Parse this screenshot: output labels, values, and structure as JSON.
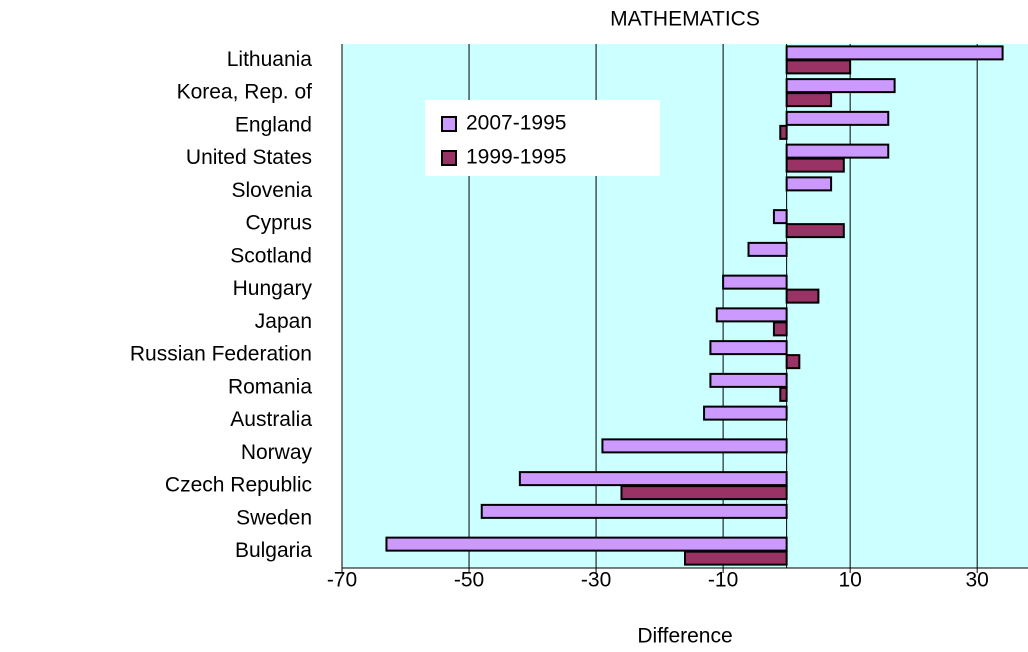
{
  "chart_data": {
    "type": "bar",
    "orientation": "horizontal",
    "title": "MATHEMATICS",
    "x_label": "Difference",
    "categories": [
      "Lithuania",
      "Korea, Rep. of",
      "England",
      "United States",
      "Slovenia",
      "Cyprus",
      "Scotland",
      "Hungary",
      "Japan",
      "Russian Federation",
      "Romania",
      "Australia",
      "Norway",
      "Czech Republic",
      "Sweden",
      "Bulgaria"
    ],
    "series": [
      {
        "name": "2007-1995",
        "color": "#cc99ff",
        "values": [
          34,
          17,
          16,
          16,
          7,
          -2,
          -6,
          -10,
          -11,
          -12,
          -12,
          -13,
          -29,
          -42,
          -48,
          -63
        ]
      },
      {
        "name": "1999-1995",
        "color": "#993366",
        "values": [
          10,
          7,
          -1,
          9,
          null,
          9,
          null,
          5,
          -2,
          2,
          -1,
          null,
          null,
          -26,
          null,
          -16
        ]
      }
    ],
    "xlim": [
      -70,
      38
    ],
    "xticks": [
      -70,
      -50,
      -30,
      -10,
      10,
      30
    ],
    "grid": true,
    "background": "#ccffff",
    "legend": "upper left"
  }
}
